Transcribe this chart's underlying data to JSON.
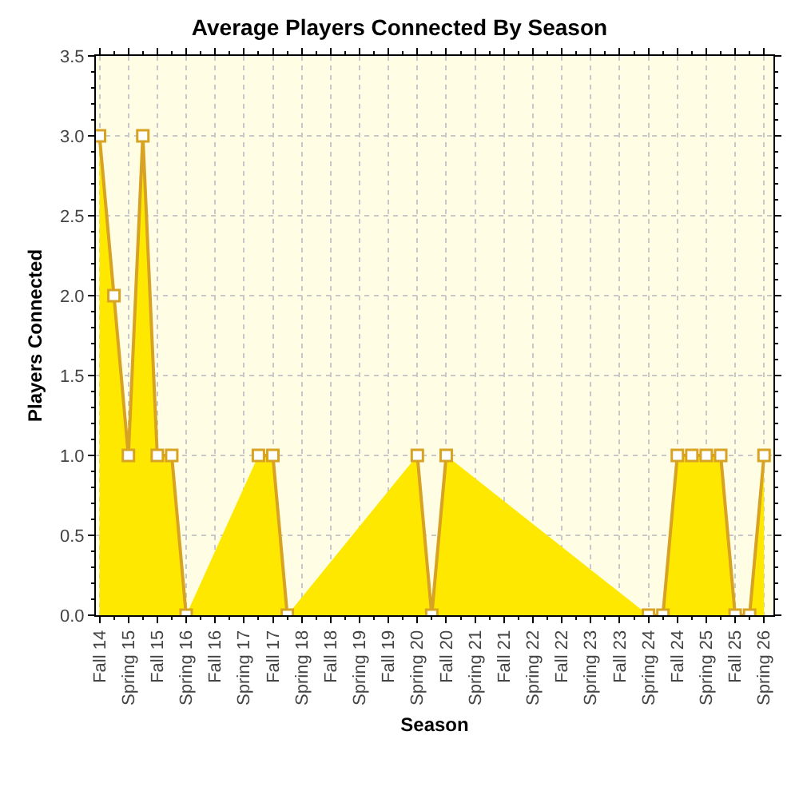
{
  "chart_data": {
    "type": "area",
    "title": "Average Players Connected By Season",
    "xlabel": "Season",
    "ylabel": "Players Connected",
    "categories": [
      "Fall 14",
      null,
      "Spring 15",
      null,
      "Fall 15",
      null,
      "Spring 16",
      null,
      "Fall 16",
      null,
      "Spring 17",
      null,
      "Fall 17",
      null,
      "Spring 18",
      null,
      "Fall 18",
      null,
      "Spring 19",
      null,
      "Fall 19",
      null,
      "Spring 20",
      null,
      "Fall 20",
      null,
      "Spring 21",
      null,
      "Fall 21",
      null,
      "Spring 22",
      null,
      "Fall 22",
      null,
      "Spring 23",
      null,
      "Fall 23",
      null,
      "Spring 24",
      null,
      "Fall 24",
      null,
      "Spring 25",
      null,
      "Fall 25",
      null,
      "Spring 26"
    ],
    "series": [
      {
        "color": "#ffe800",
        "values": [
          3,
          2,
          1,
          3,
          1,
          1,
          0,
          null,
          null,
          null,
          null,
          1,
          1,
          0,
          null,
          null,
          null,
          null,
          null,
          null,
          null,
          null,
          1,
          0,
          1,
          null,
          null,
          null,
          null,
          null,
          null,
          null,
          null,
          null,
          null,
          null,
          null,
          null,
          0,
          0,
          1,
          1,
          1,
          1,
          0,
          0,
          1
        ]
      }
    ],
    "ylim": [
      0,
      3.5
    ],
    "yticks": [
      {
        "value": 0,
        "label": "0.0"
      },
      {
        "value": 0.5,
        "label": "0.5"
      },
      {
        "value": 1,
        "label": "1.0"
      },
      {
        "value": 1.5,
        "label": "1.5"
      },
      {
        "value": 2,
        "label": "2.0"
      },
      {
        "value": 2.5,
        "label": "2.5"
      },
      {
        "value": 3,
        "label": "3.0"
      },
      {
        "value": 3.5,
        "label": "3.5"
      }
    ],
    "grid": true,
    "marker": "square",
    "line_style": "solid"
  }
}
